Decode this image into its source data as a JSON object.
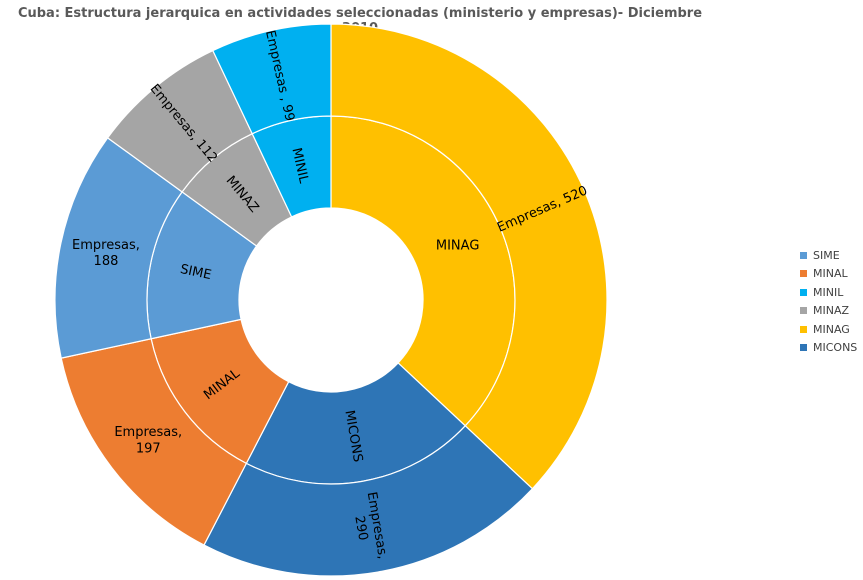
{
  "chart_data": {
    "type": "sunburst",
    "title": "Cuba: Estructura jerarquica en actividades seleccionadas (ministerio y empresas)- Diciembre 2010",
    "legend_position": "right",
    "segments": [
      {
        "name": "MINAG",
        "value": 520,
        "color": "#FFC000",
        "outer_label": [
          "Empresas, 520"
        ]
      },
      {
        "name": "MICONS",
        "value": 290,
        "color": "#2E75B6",
        "outer_label": [
          "Empresas,",
          "290"
        ]
      },
      {
        "name": "MINAL",
        "value": 197,
        "color": "#ED7D31",
        "outer_label": [
          "Empresas,",
          "197"
        ]
      },
      {
        "name": "SIME",
        "value": 188,
        "color": "#5B9BD5",
        "outer_label": [
          "Empresas,",
          "188"
        ]
      },
      {
        "name": "MINAZ",
        "value": 112,
        "color": "#A5A5A5",
        "outer_label": [
          "Empresas, 112"
        ]
      },
      {
        "name": "MINIL",
        "value": 99,
        "color": "#00B0F0",
        "outer_label": [
          "Empresas , 99"
        ]
      }
    ],
    "legend": [
      {
        "name": "SIME",
        "color": "#5B9BD5"
      },
      {
        "name": "MINAL",
        "color": "#ED7D31"
      },
      {
        "name": "MINIL",
        "color": "#00B0F0"
      },
      {
        "name": "MINAZ",
        "color": "#A5A5A5"
      },
      {
        "name": "MINAG",
        "color": "#FFC000"
      },
      {
        "name": "MICONS",
        "color": "#2E75B6"
      }
    ]
  }
}
